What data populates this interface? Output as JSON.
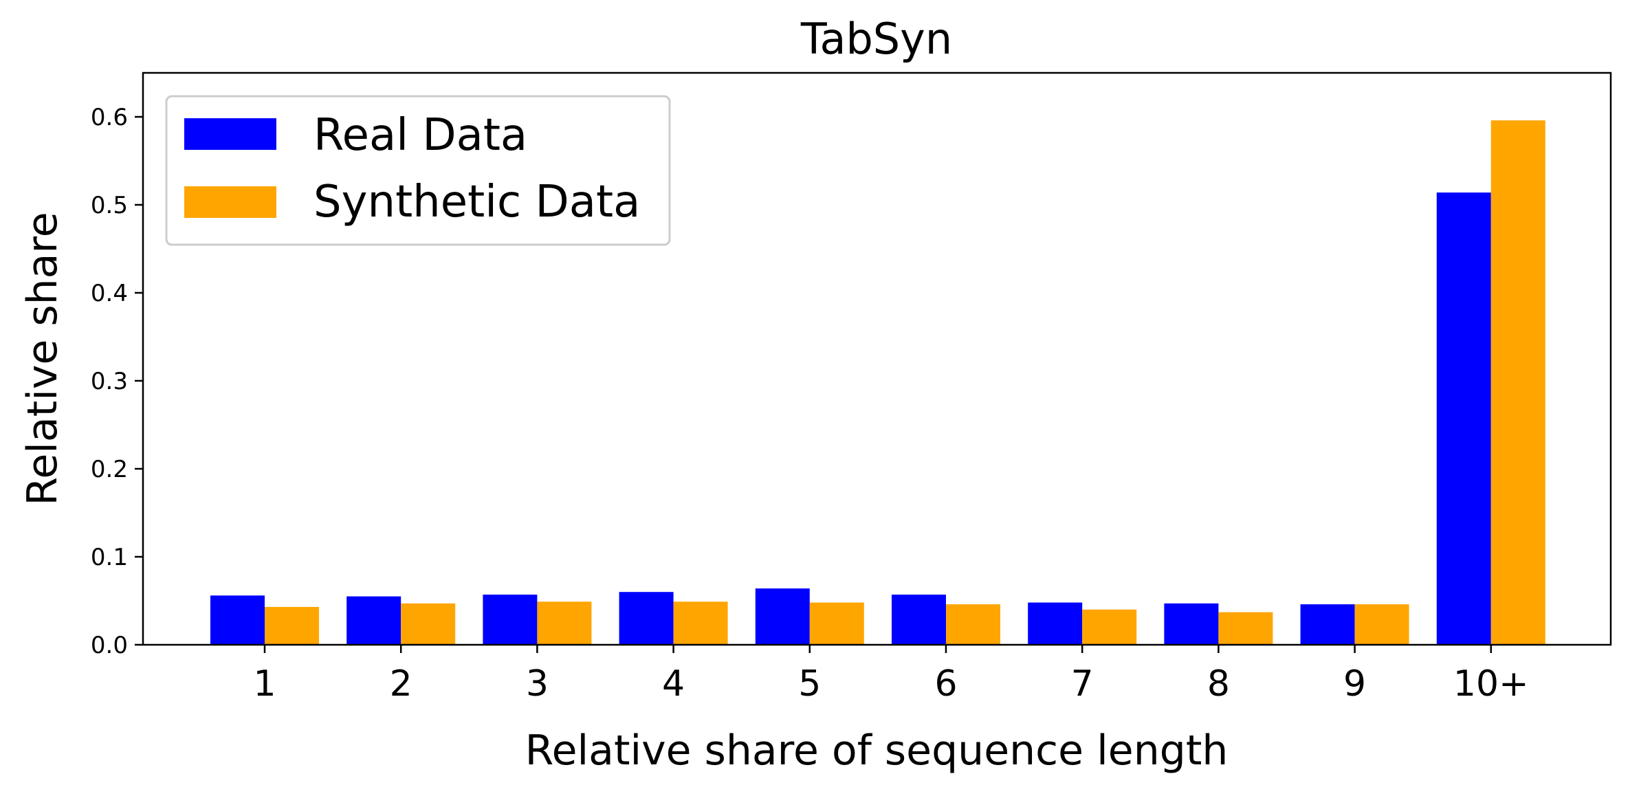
{
  "chart_data": {
    "type": "bar",
    "title": "TabSyn",
    "xlabel": "Relative share of sequence length",
    "ylabel": "Relative share",
    "categories": [
      "1",
      "2",
      "3",
      "4",
      "5",
      "6",
      "7",
      "8",
      "9",
      "10+"
    ],
    "series": [
      {
        "name": "Real Data",
        "color": "#0000ff",
        "values": [
          0.056,
          0.055,
          0.057,
          0.06,
          0.064,
          0.057,
          0.048,
          0.047,
          0.046,
          0.514
        ]
      },
      {
        "name": "Synthetic Data",
        "color": "#ffa500",
        "values": [
          0.043,
          0.047,
          0.049,
          0.049,
          0.048,
          0.046,
          0.04,
          0.037,
          0.046,
          0.596
        ]
      }
    ],
    "ylim": [
      0,
      0.65
    ],
    "yticks": [
      0.0,
      0.1,
      0.2,
      0.3,
      0.4,
      0.5,
      0.6
    ],
    "ytick_labels": [
      "0.0",
      "0.1",
      "0.2",
      "0.3",
      "0.4",
      "0.5",
      "0.6"
    ],
    "grid": false,
    "legend_position": "top-left"
  }
}
